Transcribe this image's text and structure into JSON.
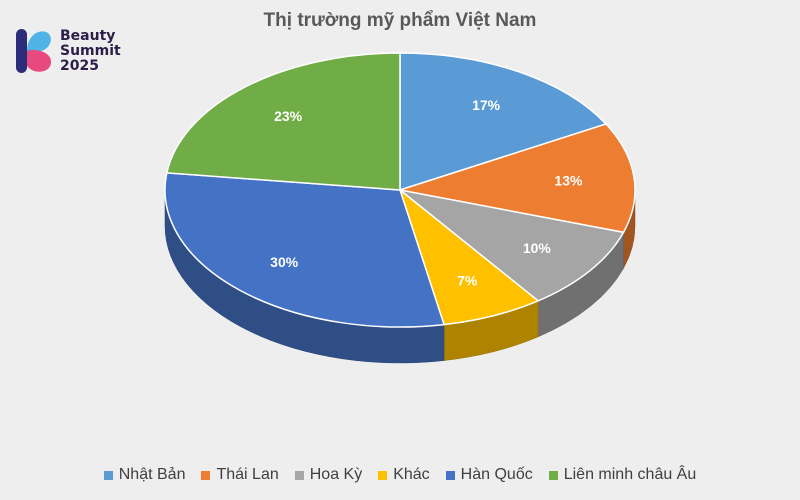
{
  "logo": {
    "line1": "Beauty",
    "line2": "Summit",
    "line3": "2025",
    "colors": [
      "#4fb3e8",
      "#2b2d7a",
      "#e8497f"
    ]
  },
  "chart_data": {
    "type": "pie",
    "title": "Thị trường mỹ phẩm Việt Nam",
    "style": "3d",
    "legend_position": "bottom",
    "series": [
      {
        "name": "Nhật Bản",
        "value": 17,
        "label": "17%",
        "color": "#5b9bd5"
      },
      {
        "name": "Thái Lan",
        "value": 13,
        "label": "13%",
        "color": "#ed7d31"
      },
      {
        "name": "Hoa Kỳ",
        "value": 10,
        "label": "10%",
        "color": "#a5a5a5"
      },
      {
        "name": "Khác",
        "value": 7,
        "label": "7%",
        "color": "#ffc000"
      },
      {
        "name": "Hàn Quốc",
        "value": 30,
        "label": "30%",
        "color": "#4472c4"
      },
      {
        "name": "Liên minh châu Âu",
        "value": 23,
        "label": "23%",
        "color": "#70ad47"
      }
    ]
  }
}
